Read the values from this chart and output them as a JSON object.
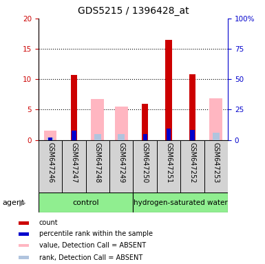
{
  "title": "GDS5215 / 1396428_at",
  "samples": [
    "GSM647246",
    "GSM647247",
    "GSM647248",
    "GSM647249",
    "GSM647250",
    "GSM647251",
    "GSM647252",
    "GSM647253"
  ],
  "red_values": [
    0.0,
    10.7,
    0.0,
    0.0,
    5.9,
    16.5,
    10.8,
    0.0
  ],
  "blue_values": [
    1.9,
    7.9,
    0.0,
    0.0,
    5.0,
    9.5,
    8.0,
    0.0
  ],
  "pink_values": [
    1.5,
    0.0,
    6.7,
    5.5,
    0.0,
    0.0,
    0.0,
    6.8
  ],
  "lightblue_values": [
    1.85,
    0.0,
    5.1,
    5.05,
    0.0,
    0.0,
    0.0,
    5.7
  ],
  "ylim_left": [
    0,
    20
  ],
  "ylim_right": [
    0,
    100
  ],
  "yticks_left": [
    0,
    5,
    10,
    15,
    20
  ],
  "yticks_right": [
    0,
    25,
    50,
    75,
    100
  ],
  "yticklabels_right": [
    "0",
    "25",
    "50",
    "75",
    "100%"
  ],
  "left_color": "#CC0000",
  "right_color": "#0000CC",
  "pink_bar_width": 0.55,
  "lb_bar_width": 0.28,
  "red_bar_width": 0.28,
  "blue_bar_width": 0.18,
  "legend_colors": [
    "#CC0000",
    "#0000CC",
    "#FFB6C1",
    "#B0C4DE"
  ],
  "legend_labels": [
    "count",
    "percentile rank within the sample",
    "value, Detection Call = ABSENT",
    "rank, Detection Call = ABSENT"
  ],
  "ctrl_color": "#90EE90",
  "h2_color": "#90EE90",
  "sample_box_color": "#d3d3d3",
  "agent_label": "agent",
  "group_label_ctrl": "control",
  "group_label_h2": "hydrogen-saturated water"
}
